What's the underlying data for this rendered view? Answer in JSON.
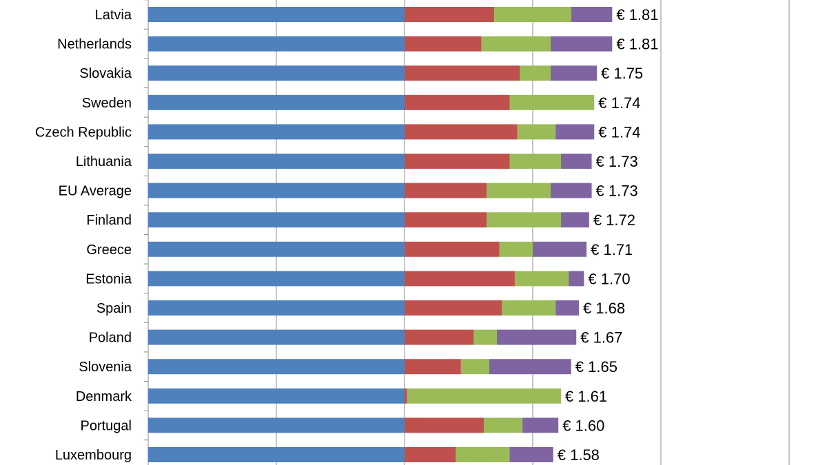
{
  "chart_data": {
    "type": "bar",
    "orientation": "horizontal",
    "stacked": true,
    "categories": [
      "Latvia",
      "Netherlands",
      "Slovakia",
      "Sweden",
      "Czech Republic",
      "Lithuania",
      "EU Average",
      "Finland",
      "Greece",
      "Estonia",
      "Spain",
      "Poland",
      "Slovenia",
      "Denmark",
      "Portugal",
      "Luxembourg"
    ],
    "series": [
      {
        "color": "#4f81bd",
        "values": [
          1.0,
          1.0,
          1.0,
          1.0,
          1.0,
          1.0,
          1.0,
          1.0,
          1.0,
          1.0,
          1.0,
          1.0,
          1.0,
          1.0,
          1.0,
          1.0
        ]
      },
      {
        "color": "#c0504d",
        "values": [
          0.35,
          0.3,
          0.45,
          0.41,
          0.44,
          0.41,
          0.32,
          0.32,
          0.37,
          0.43,
          0.38,
          0.27,
          0.22,
          0.01,
          0.31,
          0.2
        ]
      },
      {
        "color": "#9bbb59",
        "values": [
          0.3,
          0.27,
          0.12,
          0.33,
          0.15,
          0.2,
          0.25,
          0.29,
          0.13,
          0.21,
          0.21,
          0.09,
          0.11,
          0.6,
          0.15,
          0.21
        ]
      },
      {
        "color": "#8064a2",
        "values": [
          0.16,
          0.24,
          0.18,
          0.0,
          0.15,
          0.12,
          0.16,
          0.11,
          0.21,
          0.06,
          0.09,
          0.31,
          0.32,
          0.0,
          0.14,
          0.17
        ]
      }
    ],
    "data_labels": [
      "€ 1.81",
      "€ 1.81",
      "€ 1.75",
      "€ 1.74",
      "€ 1.74",
      "€ 1.73",
      "€ 1.73",
      "€ 1.72",
      "€ 1.71",
      "€ 1.70",
      "€ 1.68",
      "€ 1.67",
      "€ 1.65",
      "€ 1.61",
      "€ 1.60",
      "€ 1.58"
    ],
    "xlim": [
      0,
      2.5
    ],
    "x_gridline_step": 0.5,
    "grid": true,
    "legend": "none"
  }
}
